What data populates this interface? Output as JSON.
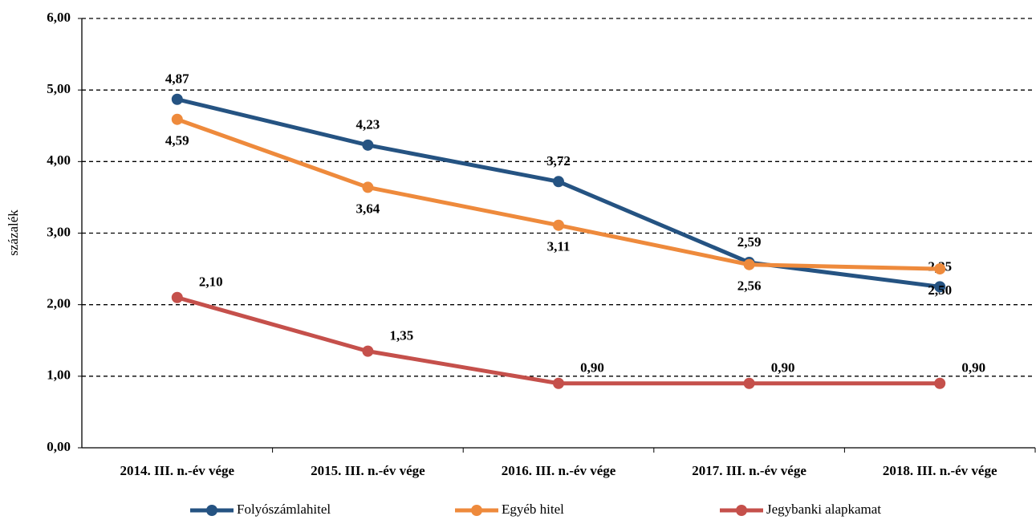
{
  "chart_data": {
    "type": "line",
    "y_label": "százalék",
    "categories": [
      "2014. III. n.-év vége",
      "2015. III. n.-év vége",
      "2016. III. n.-év vége",
      "2017. III. n.-év vége",
      "2018. III. n.-év vége"
    ],
    "series": [
      {
        "name": "Folyószámlahitel",
        "color": "#255382",
        "values": [
          4.87,
          4.23,
          3.72,
          2.59,
          2.25
        ],
        "value_labels": [
          "4,87",
          "4,23",
          "3,72",
          "2,59",
          "2,25"
        ]
      },
      {
        "name": "Egyéb hitel",
        "color": "#ee8a3c",
        "values": [
          4.59,
          3.64,
          3.11,
          2.56,
          2.5
        ],
        "value_labels": [
          "4,59",
          "3,64",
          "3,11",
          "2,56",
          "2,50"
        ]
      },
      {
        "name": "Jegybanki alapkamat",
        "color": "#c5504b",
        "values": [
          2.1,
          1.35,
          0.9,
          0.9,
          0.9
        ],
        "value_labels": [
          "2,10",
          "1,35",
          "0,90",
          "0,90",
          "0,90"
        ]
      }
    ],
    "ylim": [
      0,
      6
    ],
    "yticks": [
      {
        "value": 0,
        "label": "0,00"
      },
      {
        "value": 1,
        "label": "1,00"
      },
      {
        "value": 2,
        "label": "2,00"
      },
      {
        "value": 3,
        "label": "3,00"
      },
      {
        "value": 4,
        "label": "4,00"
      },
      {
        "value": 5,
        "label": "5,00"
      },
      {
        "value": 6,
        "label": "6,00"
      }
    ],
    "grid": true,
    "legend": "bottom"
  }
}
